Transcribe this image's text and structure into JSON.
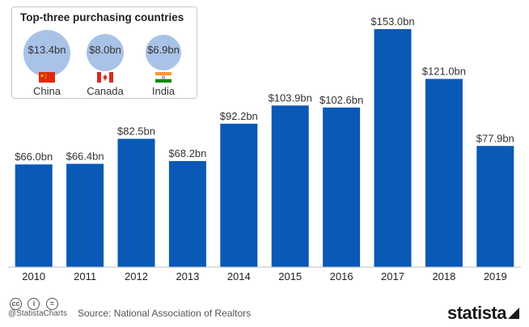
{
  "chart_data": {
    "type": "bar",
    "categories": [
      "2010",
      "2011",
      "2012",
      "2013",
      "2014",
      "2015",
      "2016",
      "2017",
      "2018",
      "2019"
    ],
    "values": [
      66.0,
      66.4,
      82.5,
      68.2,
      92.2,
      103.9,
      102.6,
      153.0,
      121.0,
      77.9
    ],
    "data_labels": [
      "$66.0bn",
      "$66.4bn",
      "$82.5bn",
      "$68.2bn",
      "$92.2bn",
      "$103.9bn",
      "$102.6bn",
      "$153.0bn",
      "$121.0bn",
      "$77.9bn"
    ],
    "ylim": [
      0,
      153
    ],
    "grid": false,
    "bar_color": "#0a59b6"
  },
  "legend": {
    "title": "Top-three purchasing countries",
    "items": [
      {
        "country": "China",
        "value_label": "$13.4bn",
        "value": 13.4,
        "flag": "china-flag-icon"
      },
      {
        "country": "Canada",
        "value_label": "$8.0bn",
        "value": 8.0,
        "flag": "canada-flag-icon"
      },
      {
        "country": "India",
        "value_label": "$6.9bn",
        "value": 6.9,
        "flag": "india-flag-icon"
      }
    ],
    "bubble_color": "#a9c2e8"
  },
  "footer": {
    "handle": "@StatistaCharts",
    "source": "Source: National Association of Realtors",
    "logo": "statista"
  }
}
